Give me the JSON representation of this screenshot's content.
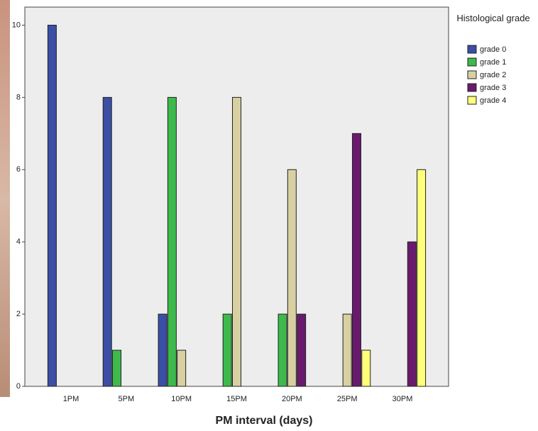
{
  "chart_data": {
    "type": "bar",
    "categories": [
      "1PM",
      "5PM",
      "10PM",
      "15PM",
      "20PM",
      "25PM",
      "30PM"
    ],
    "x_label": "PM interval (days)",
    "legend_title": "Histological grade",
    "series": [
      {
        "name": "grade 0",
        "color": "#3b4fa6",
        "values": [
          10,
          8,
          2,
          null,
          null,
          null,
          null
        ]
      },
      {
        "name": "grade 1",
        "color": "#3dba4b",
        "values": [
          null,
          1,
          8,
          2,
          2,
          null,
          null
        ]
      },
      {
        "name": "grade 2",
        "color": "#d8d0a2",
        "values": [
          null,
          null,
          1,
          8,
          6,
          2,
          null
        ]
      },
      {
        "name": "grade 3",
        "color": "#6a1a6e",
        "values": [
          null,
          null,
          null,
          null,
          2,
          7,
          4
        ]
      },
      {
        "name": "grade 4",
        "color": "#ffff7a",
        "values": [
          null,
          null,
          null,
          null,
          null,
          1,
          6
        ]
      }
    ],
    "ylim": [
      0,
      10.5
    ],
    "yticks": [
      0,
      2,
      4,
      6,
      8,
      10
    ],
    "grid": false
  }
}
